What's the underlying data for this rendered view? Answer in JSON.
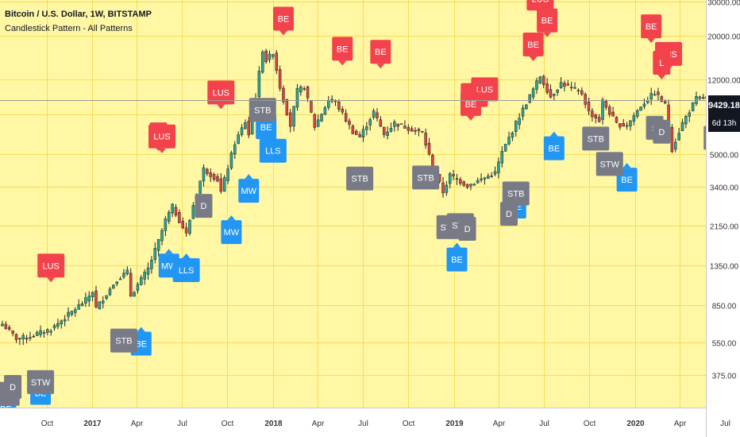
{
  "chart_data": {
    "type": "candlestick",
    "title": "Bitcoin / U.S. Dollar, 1W, BITSTAMP",
    "subtitle": "Candlestick Pattern - All Patterns",
    "y_scale": "log",
    "ylim": [
      255,
      30500
    ],
    "y_ticks": [
      30000,
      20000,
      12000,
      8000,
      5000,
      3400,
      2150,
      1350,
      850,
      550,
      375
    ],
    "y_tick_labels": [
      "30000.00",
      "20000.00",
      "12000.00",
      "8000.00",
      "5000.00",
      "3400.00",
      "2150.00",
      "1350.00",
      "850.00",
      "550.00",
      "375.00"
    ],
    "x_ticks": [
      {
        "label": "Oct",
        "date": "2016-10",
        "bold": false
      },
      {
        "label": "2017",
        "date": "2017-01",
        "bold": true
      },
      {
        "label": "Apr",
        "date": "2017-04",
        "bold": false
      },
      {
        "label": "Jul",
        "date": "2017-07",
        "bold": false
      },
      {
        "label": "Oct",
        "date": "2017-10",
        "bold": false
      },
      {
        "label": "2018",
        "date": "2018-01",
        "bold": true
      },
      {
        "label": "Apr",
        "date": "2018-04",
        "bold": false
      },
      {
        "label": "Jul",
        "date": "2018-07",
        "bold": false
      },
      {
        "label": "Oct",
        "date": "2018-10",
        "bold": false
      },
      {
        "label": "2019",
        "date": "2019-01",
        "bold": true
      },
      {
        "label": "Apr",
        "date": "2019-04",
        "bold": false
      },
      {
        "label": "Jul",
        "date": "2019-07",
        "bold": false
      },
      {
        "label": "Oct",
        "date": "2019-10",
        "bold": false
      },
      {
        "label": "2020",
        "date": "2020-01",
        "bold": true
      },
      {
        "label": "Apr",
        "date": "2020-04",
        "bold": false
      },
      {
        "label": "Jul",
        "date": "2020-07",
        "bold": false
      }
    ],
    "close_waypoints": [
      [
        "2016-07-04",
        680
      ],
      [
        "2016-08-01",
        575
      ],
      [
        "2016-08-22",
        580
      ],
      [
        "2016-10-10",
        640
      ],
      [
        "2016-12-19",
        900
      ],
      [
        "2017-01-02",
        1000
      ],
      [
        "2017-01-09",
        820
      ],
      [
        "2017-02-20",
        1150
      ],
      [
        "2017-03-13",
        1250
      ],
      [
        "2017-03-20",
        950
      ],
      [
        "2017-04-24",
        1300
      ],
      [
        "2017-05-15",
        1800
      ],
      [
        "2017-05-29",
        2300
      ],
      [
        "2017-06-12",
        2700
      ],
      [
        "2017-07-10",
        1950
      ],
      [
        "2017-07-24",
        2750
      ],
      [
        "2017-08-14",
        4200
      ],
      [
        "2017-09-11",
        3700
      ],
      [
        "2017-09-18",
        3200
      ],
      [
        "2017-10-16",
        5700
      ],
      [
        "2017-11-06",
        7300
      ],
      [
        "2017-11-13",
        6300
      ],
      [
        "2017-11-27",
        9800
      ],
      [
        "2017-12-11",
        17000
      ],
      [
        "2017-12-18",
        15000
      ],
      [
        "2018-01-01",
        16500
      ],
      [
        "2018-01-15",
        11000
      ],
      [
        "2018-02-05",
        7000
      ],
      [
        "2018-02-19",
        10500
      ],
      [
        "2018-03-05",
        11000
      ],
      [
        "2018-03-26",
        6900
      ],
      [
        "2018-04-23",
        9400
      ],
      [
        "2018-05-07",
        9200
      ],
      [
        "2018-06-11",
        6500
      ],
      [
        "2018-06-25",
        6100
      ],
      [
        "2018-07-23",
        8200
      ],
      [
        "2018-08-13",
        6300
      ],
      [
        "2018-09-03",
        7200
      ],
      [
        "2018-10-29",
        6400
      ],
      [
        "2018-11-19",
        4300
      ],
      [
        "2018-12-10",
        3200
      ],
      [
        "2018-12-24",
        3900
      ],
      [
        "2019-01-28",
        3450
      ],
      [
        "2019-03-25",
        4000
      ],
      [
        "2019-04-08",
        5100
      ],
      [
        "2019-05-13",
        7800
      ],
      [
        "2019-06-24",
        12500
      ],
      [
        "2019-07-15",
        9800
      ],
      [
        "2019-08-05",
        11500
      ],
      [
        "2019-09-16",
        10200
      ],
      [
        "2019-09-30",
        8200
      ],
      [
        "2019-10-21",
        7400
      ],
      [
        "2019-10-28",
        9300
      ],
      [
        "2019-11-25",
        7100
      ],
      [
        "2019-12-16",
        7000
      ],
      [
        "2020-01-13",
        8800
      ],
      [
        "2020-02-10",
        10300
      ],
      [
        "2020-03-02",
        8900
      ],
      [
        "2020-03-16",
        5300
      ],
      [
        "2020-04-06",
        7200
      ],
      [
        "2020-05-04",
        9600
      ],
      [
        "2020-06-08",
        9700
      ],
      [
        "2020-06-22",
        9429
      ]
    ],
    "last_price": "9429.18",
    "time_to_close": "6d 13h",
    "pattern_labels": [
      {
        "text": "BE",
        "date": "2018-01-22",
        "price": 24500,
        "kind": "bearish"
      },
      {
        "text": "BE",
        "date": "2018-05-21",
        "price": 17200,
        "kind": "bearish"
      },
      {
        "text": "BE",
        "date": "2018-08-06",
        "price": 16600,
        "kind": "bearish"
      },
      {
        "text": "LUS",
        "date": "2017-09-18",
        "price": 10300,
        "kind": "bearish"
      },
      {
        "text": "L",
        "date": "2017-05-15",
        "price": 6300,
        "kind": "bearish"
      },
      {
        "text": "LUS",
        "date": "2017-05-22",
        "price": 6150,
        "kind": "bearish"
      },
      {
        "text": "LUS",
        "date": "2016-10-10",
        "price": 1350,
        "kind": "bearish"
      },
      {
        "text": "LUS",
        "date": "2019-06-24",
        "price": 31000,
        "kind": "bearish"
      },
      {
        "text": "BE",
        "date": "2019-07-08",
        "price": 24000,
        "kind": "bearish"
      },
      {
        "text": "BE",
        "date": "2019-06-10",
        "price": 18100,
        "kind": "bearish"
      },
      {
        "text": "BE",
        "date": "2020-02-03",
        "price": 22400,
        "kind": "bearish"
      },
      {
        "text": "LUS",
        "date": "2020-03-09",
        "price": 16200,
        "kind": "bearish"
      },
      {
        "text": "L",
        "date": "2020-02-24",
        "price": 14600,
        "kind": "bearish"
      },
      {
        "text": "LUS",
        "date": "2019-02-11",
        "price": 10000,
        "kind": "bearish"
      },
      {
        "text": "LUS",
        "date": "2019-03-04",
        "price": 10700,
        "kind": "bearish"
      },
      {
        "text": "BE",
        "date": "2019-02-04",
        "price": 9000,
        "kind": "bearish"
      },
      {
        "text": "BE",
        "date": "2016-07-11",
        "price": 252,
        "kind": "bullish"
      },
      {
        "text": "BE",
        "date": "2016-09-19",
        "price": 303,
        "kind": "bullish"
      },
      {
        "text": "BE",
        "date": "2017-04-10",
        "price": 540,
        "kind": "bullish"
      },
      {
        "text": "MW",
        "date": "2017-06-05",
        "price": 1350,
        "kind": "bullish"
      },
      {
        "text": "LLS",
        "date": "2017-07-10",
        "price": 1280,
        "kind": "bullish"
      },
      {
        "text": "MW",
        "date": "2017-10-09",
        "price": 2000,
        "kind": "bullish"
      },
      {
        "text": "MW",
        "date": "2017-11-13",
        "price": 3250,
        "kind": "bullish"
      },
      {
        "text": "BE",
        "date": "2017-12-18",
        "price": 6850,
        "kind": "bullish"
      },
      {
        "text": "LLS",
        "date": "2018-01-01",
        "price": 5200,
        "kind": "bullish"
      },
      {
        "text": "BE",
        "date": "2019-01-07",
        "price": 1450,
        "kind": "bullish"
      },
      {
        "text": "BE",
        "date": "2019-05-06",
        "price": 2700,
        "kind": "bullish"
      },
      {
        "text": "BE",
        "date": "2019-07-22",
        "price": 5350,
        "kind": "bullish"
      },
      {
        "text": "BE",
        "date": "2019-12-16",
        "price": 3700,
        "kind": "bullish"
      },
      {
        "text": "ST",
        "date": "2016-07-18",
        "price": 300,
        "kind": "neutral"
      },
      {
        "text": "D",
        "date": "2016-07-25",
        "price": 325,
        "kind": "neutral"
      },
      {
        "text": "STW",
        "date": "2016-09-19",
        "price": 344,
        "kind": "neutral"
      },
      {
        "text": "STB",
        "date": "2017-03-06",
        "price": 560,
        "kind": "neutral"
      },
      {
        "text": "D",
        "date": "2017-08-14",
        "price": 2720,
        "kind": "neutral"
      },
      {
        "text": "STB",
        "date": "2017-12-11",
        "price": 8400,
        "kind": "neutral"
      },
      {
        "text": "STB",
        "date": "2018-06-25",
        "price": 3750,
        "kind": "neutral"
      },
      {
        "text": "STB",
        "date": "2018-11-05",
        "price": 3800,
        "kind": "neutral"
      },
      {
        "text": "STW",
        "date": "2018-12-24",
        "price": 2120,
        "kind": "neutral"
      },
      {
        "text": "STB",
        "date": "2019-01-14",
        "price": 2170,
        "kind": "neutral"
      },
      {
        "text": "D",
        "date": "2019-01-28",
        "price": 2080,
        "kind": "neutral"
      },
      {
        "text": "D",
        "date": "2019-04-22",
        "price": 2480,
        "kind": "neutral"
      },
      {
        "text": "STB",
        "date": "2019-05-06",
        "price": 3150,
        "kind": "neutral"
      },
      {
        "text": "STB",
        "date": "2019-10-14",
        "price": 6000,
        "kind": "neutral"
      },
      {
        "text": "STW",
        "date": "2019-11-11",
        "price": 4450,
        "kind": "neutral"
      },
      {
        "text": "S",
        "date": "2020-02-10",
        "price": 6800,
        "kind": "neutral"
      },
      {
        "text": "D",
        "date": "2020-02-24",
        "price": 6500,
        "kind": "neutral"
      },
      {
        "text": "STB",
        "date": "2020-06-15",
        "price": 6050,
        "kind": "neutral"
      }
    ],
    "colors": {
      "background": "#FFF7A4",
      "grid": "#F5DE55",
      "up": "#26A69A",
      "down": "#E04343",
      "bearish_label": "#F2434C",
      "bullish_label": "#2196F3",
      "neutral_label": "#787B86",
      "axis_bg": "#FFFFFF",
      "price_line": "#9A9A9A"
    }
  }
}
